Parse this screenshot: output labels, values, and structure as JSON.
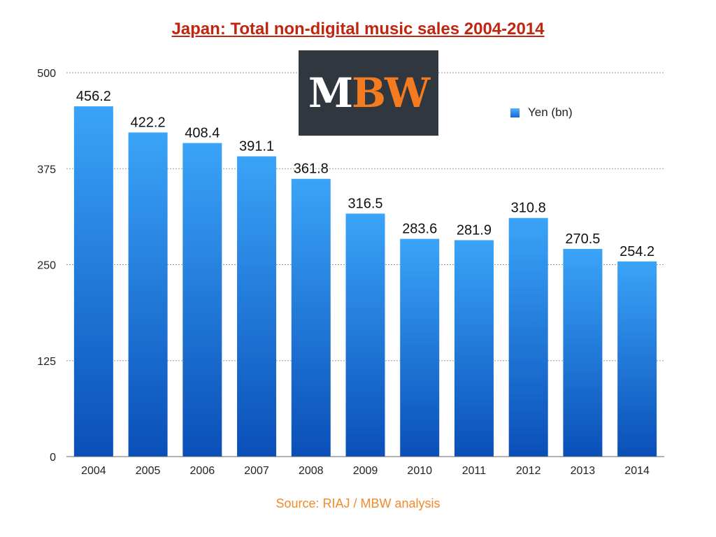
{
  "colors": {
    "title": "#c0260f",
    "bar_top": "#3aa4f8",
    "bar_bottom": "#0a4fb8",
    "grid": "#999999",
    "source": "#f08a2a",
    "logo_bg": "#30373f",
    "logo_accent": "#f47b20"
  },
  "logo": {
    "part1": "M",
    "part2": "BW"
  },
  "chart_data": {
    "type": "bar",
    "title": "Japan: Total non-digital music sales 2004-2014",
    "source": "Source: RIAJ / MBW analysis",
    "categories": [
      "2004",
      "2005",
      "2006",
      "2007",
      "2008",
      "2009",
      "2010",
      "2011",
      "2012",
      "2013",
      "2014"
    ],
    "series": [
      {
        "name": "Yen (bn)",
        "values": [
          456.2,
          422.2,
          408.4,
          391.1,
          361.8,
          316.5,
          283.6,
          281.9,
          310.8,
          270.5,
          254.2
        ]
      }
    ],
    "data_labels": [
      "456.2",
      "422.2",
      "408.4",
      "391.1",
      "361.8",
      "316.5",
      "283.6",
      "281.9",
      "310.8",
      "270.5",
      "254.2"
    ],
    "ylim": [
      0,
      500
    ],
    "yticks": [
      0,
      125,
      250,
      375,
      500
    ],
    "ytick_labels": [
      "0",
      "125",
      "250",
      "375",
      "500"
    ],
    "grid": true,
    "legend": "right",
    "xlabel": "",
    "ylabel": ""
  }
}
